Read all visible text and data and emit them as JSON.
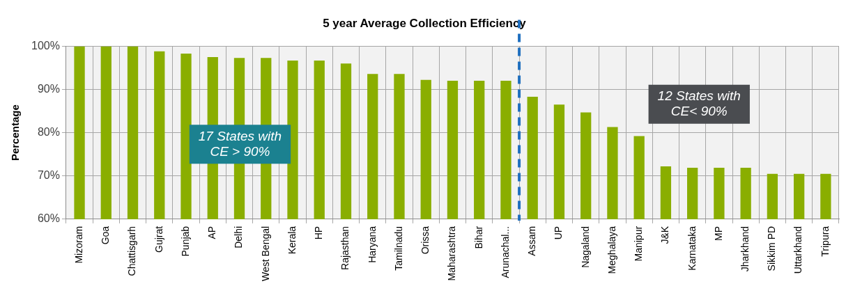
{
  "chart_data": {
    "type": "bar",
    "title": "5 year Average Collection Efficiency",
    "ylabel": "Percentage",
    "categories": [
      "Mizoram",
      "Goa",
      "Chattisgarh",
      "Gujrat",
      "Punjab",
      "AP",
      "Delhi",
      "West Bengal",
      "Kerala",
      "HP",
      "Rajasthan",
      "Haryana",
      "Tamilnadu",
      "Orissa",
      "Maharashtra",
      "Bihar",
      "Arunachal...",
      "Assam",
      "UP",
      "Nagaland",
      "Meghalaya",
      "Manipur",
      "J&K",
      "Karnataka",
      "MP",
      "Jharkhand",
      "Sikkim PD",
      "Uttarkhand",
      "Tripura"
    ],
    "values": [
      100,
      100,
      100,
      98.8,
      98.3,
      97.5,
      97.3,
      97.3,
      96.7,
      96.7,
      96.0,
      93.6,
      93.6,
      92.2,
      92.0,
      92.0,
      92.0,
      88.3,
      86.5,
      84.7,
      81.3,
      79.2,
      72.2,
      71.9,
      71.9,
      71.9,
      70.5,
      70.5,
      70.5
    ],
    "color": "#8aae00",
    "ylim": [
      60,
      100
    ],
    "yticks": [
      {
        "value": 60,
        "label": "60%"
      },
      {
        "value": 70,
        "label": "70%"
      },
      {
        "value": 80,
        "label": "80%"
      },
      {
        "value": 90,
        "label": "90%"
      },
      {
        "value": 100,
        "label": "100%"
      }
    ],
    "grid": true,
    "ref_lines": [
      {
        "axis": "x",
        "value": "Arunachal...",
        "color": "#1f6fbf",
        "line_style": "dashed"
      }
    ],
    "annotations": [
      "17 States with CE > 90%",
      "12 States with CE< 90%"
    ]
  }
}
